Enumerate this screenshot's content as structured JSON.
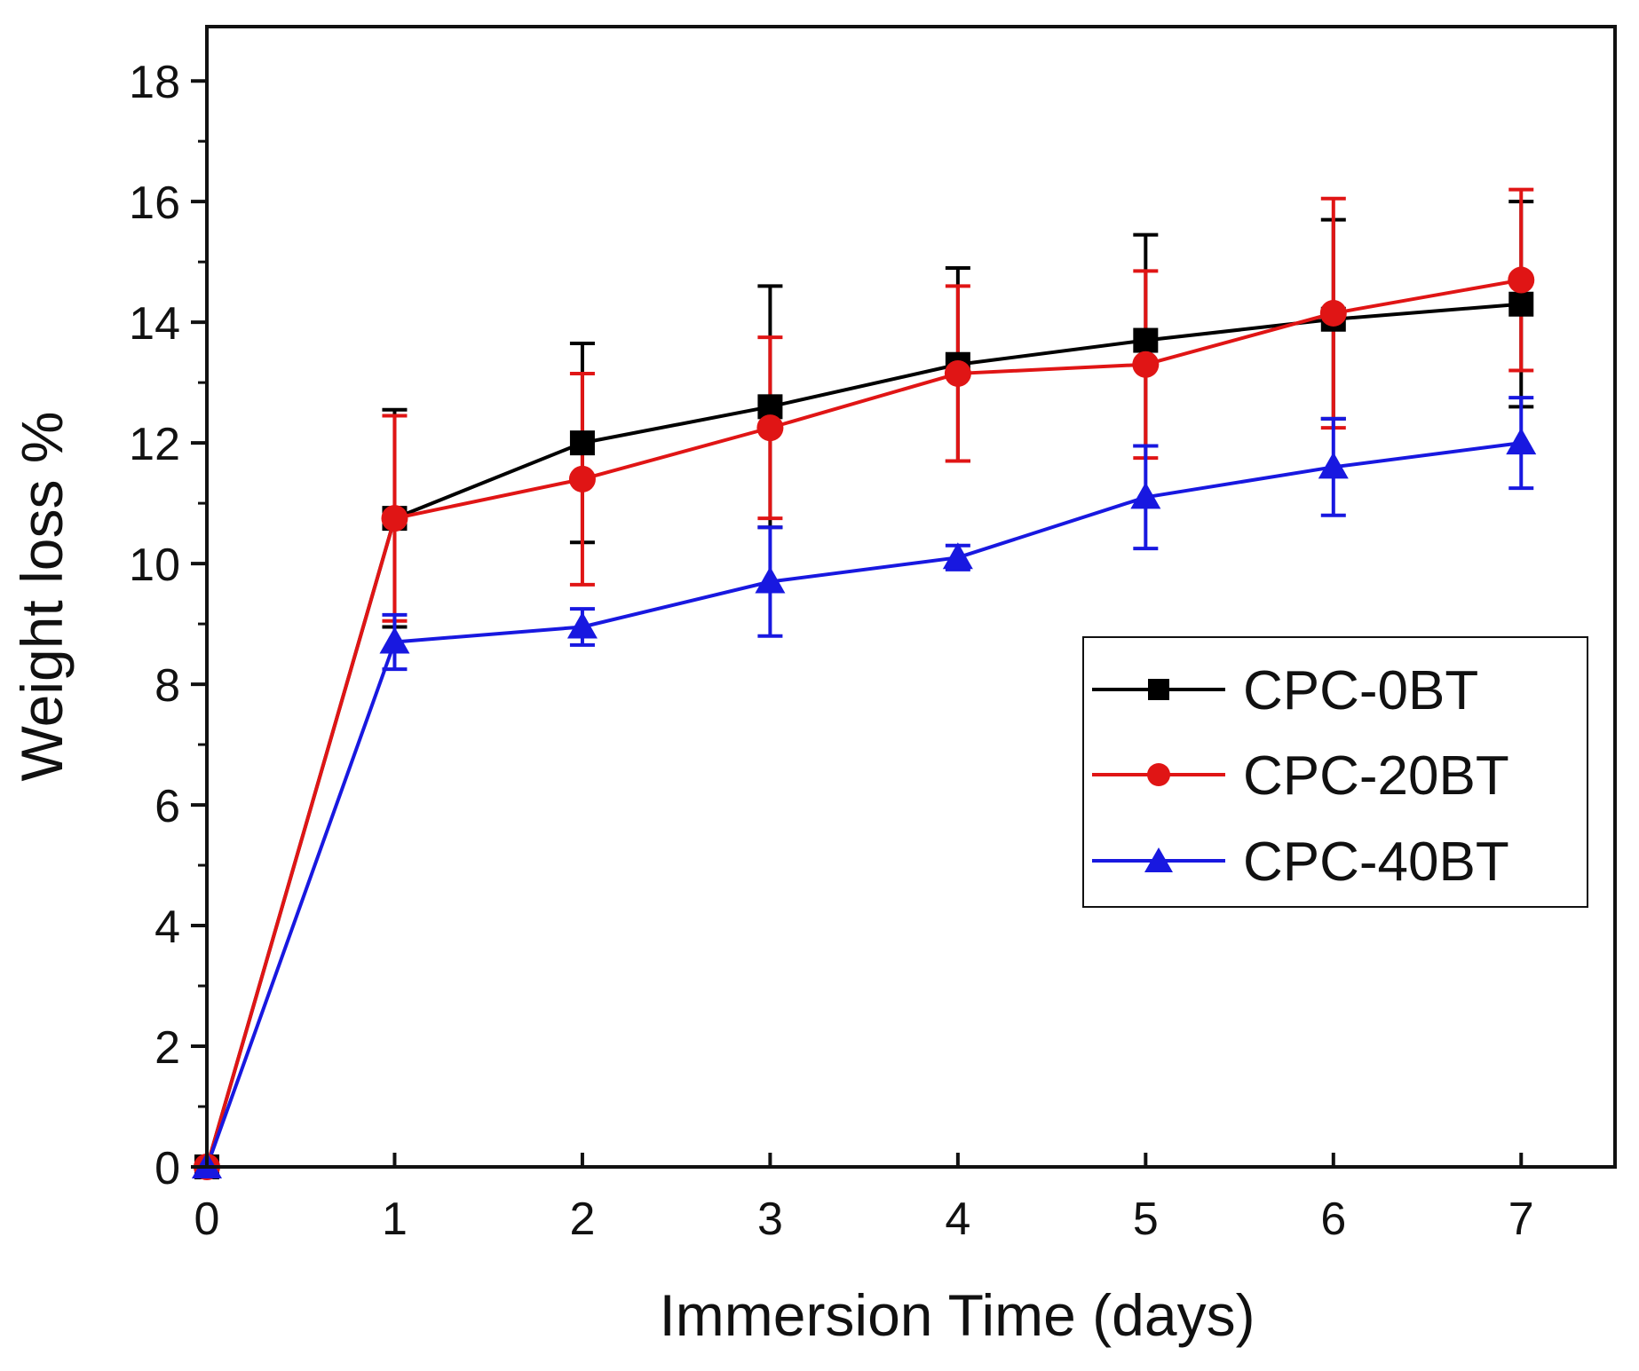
{
  "chart_data": {
    "type": "line",
    "title": "",
    "xlabel": "Immersion Time (days)",
    "ylabel": "Weight loss %",
    "xlim": [
      0,
      7.5
    ],
    "ylim": [
      0,
      18.9
    ],
    "x_ticks": [
      0,
      1,
      2,
      3,
      4,
      5,
      6,
      7
    ],
    "y_ticks": [
      0,
      2,
      4,
      6,
      8,
      10,
      12,
      14,
      16,
      18
    ],
    "grid": false,
    "legend_position": "center-right",
    "series": [
      {
        "name": "CPC-0BT",
        "color": "#000000",
        "marker": "square",
        "x": [
          0,
          1,
          2,
          3,
          4,
          5,
          6,
          7
        ],
        "values": [
          0,
          10.75,
          12.0,
          12.6,
          13.3,
          13.7,
          14.05,
          14.3
        ],
        "error": [
          0,
          1.8,
          1.65,
          2.0,
          1.6,
          1.75,
          1.65,
          1.7
        ]
      },
      {
        "name": "CPC-20BT",
        "color": "#e01515",
        "marker": "circle",
        "x": [
          0,
          1,
          2,
          3,
          4,
          5,
          6,
          7
        ],
        "values": [
          0,
          10.75,
          11.4,
          12.25,
          13.15,
          13.3,
          14.15,
          14.7
        ],
        "error": [
          0,
          1.7,
          1.75,
          1.5,
          1.45,
          1.55,
          1.9,
          1.5
        ]
      },
      {
        "name": "CPC-40BT",
        "color": "#1818e0",
        "marker": "triangle",
        "x": [
          0,
          1,
          2,
          3,
          4,
          5,
          6,
          7
        ],
        "values": [
          0,
          8.7,
          8.95,
          9.7,
          10.1,
          11.1,
          11.6,
          12.0
        ],
        "error": [
          0,
          0.45,
          0.3,
          0.9,
          0.2,
          0.85,
          0.8,
          0.75
        ]
      }
    ]
  }
}
